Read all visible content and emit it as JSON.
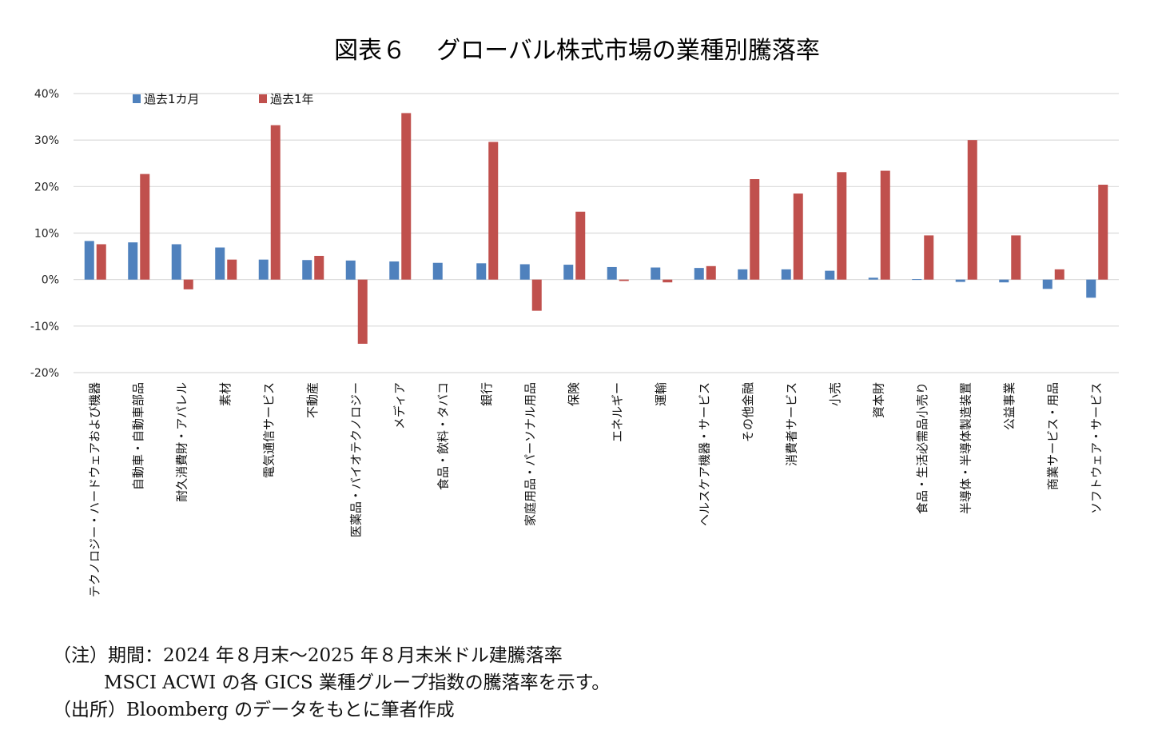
{
  "chart_data": {
    "type": "bar",
    "title": "図表６　グローバル株式市場の業種別騰落率",
    "title_prefix": "図表６",
    "title_main": "グローバル株式市場の業種別騰落率",
    "xlabel": "",
    "ylabel": "",
    "ylim": [
      -20,
      40
    ],
    "yticks": [
      40,
      30,
      20,
      10,
      0,
      -10,
      -20
    ],
    "ytick_labels": [
      "40%",
      "30%",
      "20%",
      "10%",
      "0%",
      "-10%",
      "-20%"
    ],
    "grid": true,
    "legend_position": "top-left",
    "categories": [
      "テクノロジー・ハードウェアおよび機器",
      "自動車・自動車部品",
      "耐久消費財・アパレル",
      "素材",
      "電気通信サービス",
      "不動産",
      "医薬品・バイオテクノロジー",
      "メディア",
      "食品・飲料・タバコ",
      "銀行",
      "家庭用品・パーソナル用品",
      "保険",
      "エネルギー",
      "運輸",
      "ヘルスケア機器・サービス",
      "その他金融",
      "消費者サービス",
      "小売",
      "資本財",
      "食品・生活必需品小売り",
      "半導体・半導体製造装置",
      "公益事業",
      "商業サービス・用品",
      "ソフトウェア・サービス"
    ],
    "series": [
      {
        "name": "過去1カ月",
        "color": "#4f81bd",
        "values": [
          8.3,
          8.0,
          7.6,
          6.9,
          4.3,
          4.2,
          4.1,
          3.9,
          3.6,
          3.5,
          3.3,
          3.2,
          2.7,
          2.6,
          2.5,
          2.2,
          2.2,
          1.9,
          0.4,
          0.1,
          -0.5,
          -0.6,
          -2.0,
          -3.9
        ]
      },
      {
        "name": "過去1年",
        "color": "#c0504d",
        "values": [
          7.6,
          22.7,
          -2.1,
          4.3,
          33.2,
          5.1,
          -13.8,
          35.8,
          0.0,
          29.6,
          -6.7,
          14.6,
          -0.3,
          -0.6,
          2.9,
          21.6,
          18.5,
          23.1,
          23.4,
          9.5,
          30.0,
          9.5,
          2.2,
          20.4
        ]
      }
    ]
  },
  "notes": {
    "line1": "（注）期間：2024 年８月末～2025 年８月末米ドル建騰落率",
    "line2": "MSCI ACWI の各 GICS 業種グループ指数の騰落率を示す。",
    "line3": "（出所）Bloomberg のデータをもとに筆者作成"
  },
  "colors": {
    "grid": "#d9d9d9",
    "background": "#ffffff"
  }
}
